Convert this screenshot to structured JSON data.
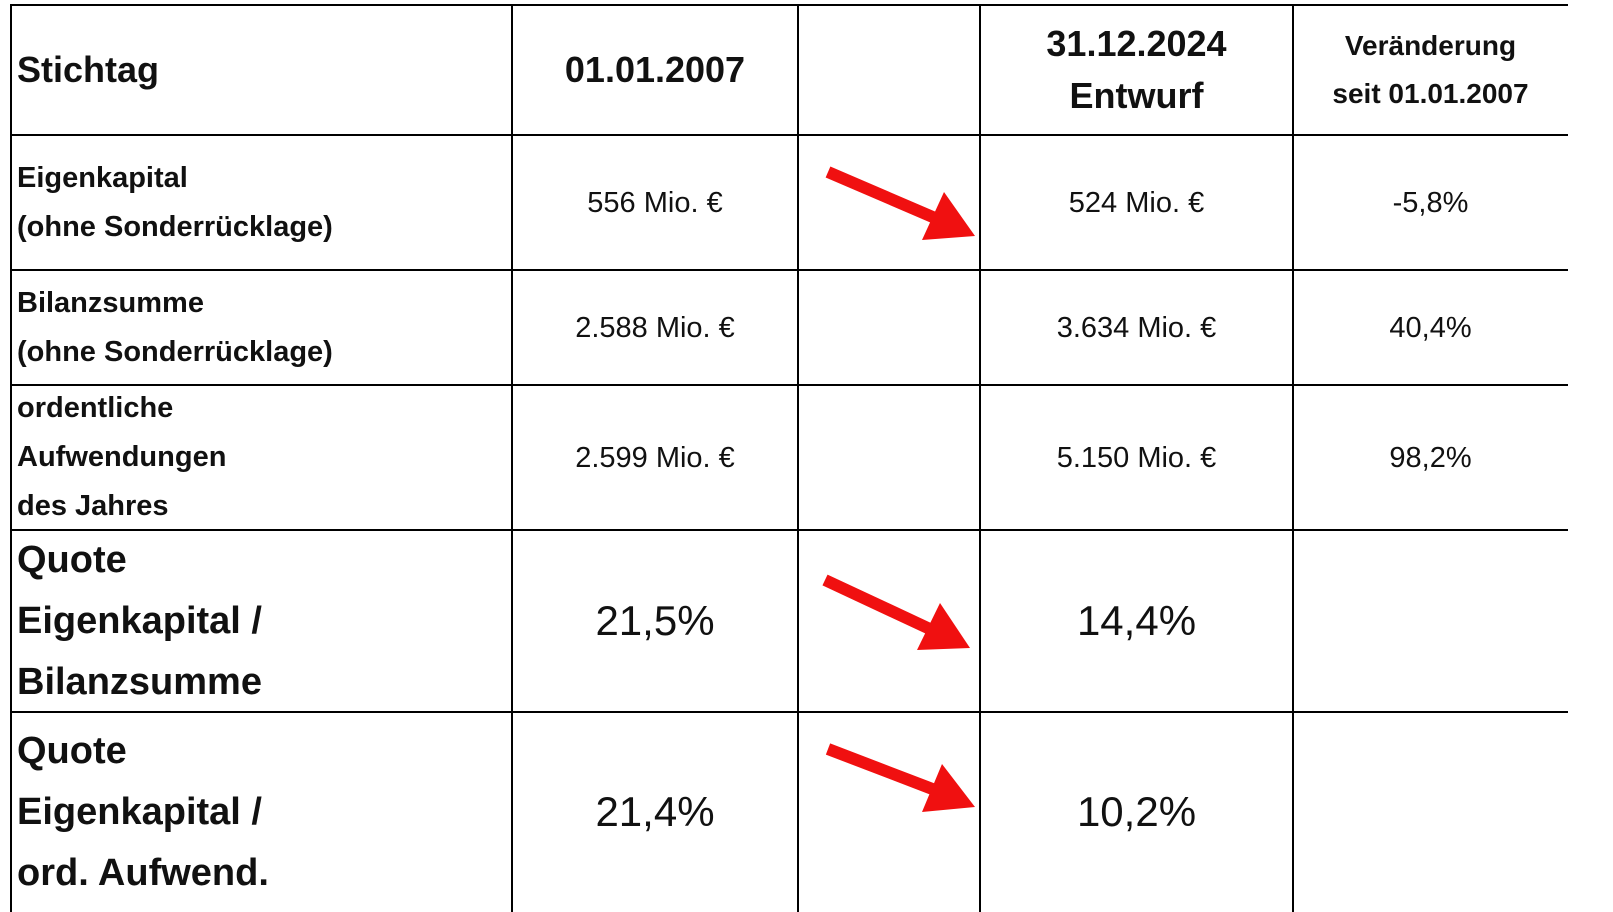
{
  "header": {
    "label": [
      "Stichtag"
    ],
    "start": [
      "01.01.2007"
    ],
    "end": [
      "31.12.2024",
      "Entwurf"
    ],
    "change": [
      "Veränderung",
      "seit 01.01.2007"
    ]
  },
  "rows": [
    {
      "label": [
        "Eigenkapital",
        "(ohne Sonderrücklage)"
      ],
      "start": [
        "556 Mio. €"
      ],
      "end": [
        "524 Mio. €"
      ],
      "change": [
        "-5,8%"
      ]
    },
    {
      "label": [
        "Bilanzsumme",
        "(ohne Sonderrücklage)"
      ],
      "start": [
        "2.588 Mio. €"
      ],
      "end": [
        "3.634 Mio. €"
      ],
      "change": [
        "40,4%"
      ]
    },
    {
      "label": [
        "ordentliche",
        "Aufwendungen",
        "des Jahres"
      ],
      "start": [
        "2.599 Mio. €"
      ],
      "end": [
        "5.150 Mio. €"
      ],
      "change": [
        "98,2%"
      ]
    },
    {
      "label": [
        "Quote",
        "Eigenkapital /",
        "Bilanzsumme"
      ],
      "start": [
        "21,5%"
      ],
      "end": [
        "14,4%"
      ]
    },
    {
      "label": [
        "Quote",
        "Eigenkapital /",
        "ord. Aufwend."
      ],
      "start": [
        "21,4%"
      ],
      "end": [
        "10,2%"
      ]
    }
  ]
}
